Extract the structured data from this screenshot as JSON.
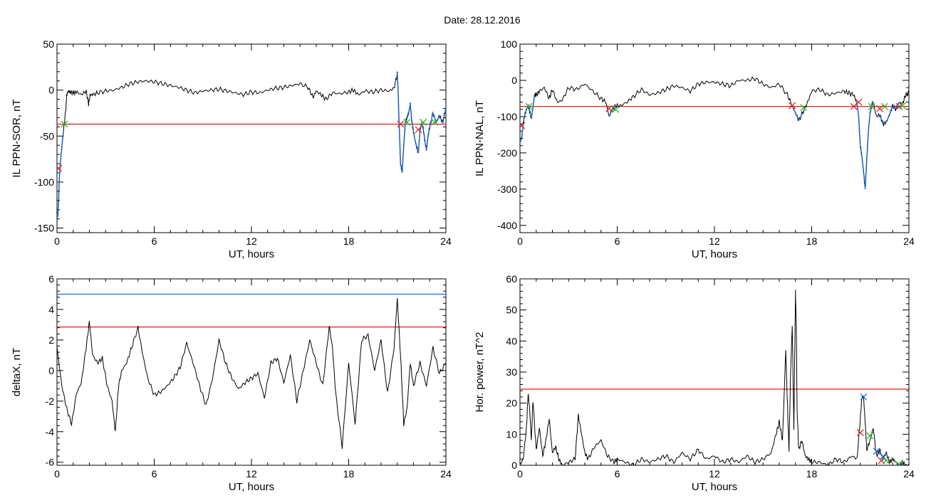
{
  "figure_title": "Date:  28.12.2016",
  "colors": {
    "series": "#000000",
    "threshold": "#e0201c",
    "threshold2": "#1a6fe0",
    "highlight": "#1a6fe0",
    "mark_start": "#e0201c",
    "mark_end": "#2bb52b"
  },
  "chart_data": [
    {
      "id": "p1",
      "type": "line",
      "xlabel": "UT, hours",
      "ylabel": "IL PPN-SOR, nT",
      "xlim": [
        0,
        24
      ],
      "ylim": [
        -155,
        50
      ],
      "xticks": [
        0,
        6,
        12,
        18,
        24
      ],
      "yticks": [
        -150,
        -100,
        -50,
        0,
        50
      ],
      "hlines": [
        {
          "y": -37,
          "color": "threshold"
        }
      ],
      "series": [
        {
          "x": [
            0.0,
            0.05,
            0.1,
            0.15,
            0.25,
            0.4,
            0.55,
            0.6,
            0.7,
            0.8,
            1.0,
            1.2,
            1.5,
            1.8,
            1.95,
            2.05,
            2.2,
            2.5,
            3.0,
            3.5,
            4.0,
            4.5,
            5.0,
            5.5,
            6.0,
            6.5,
            7.0,
            7.5,
            8.0,
            8.5,
            9.0,
            9.5,
            10.0,
            10.5,
            11.0,
            11.5,
            12.0,
            12.5,
            13.0,
            13.5,
            14.0,
            14.5,
            15.0,
            15.5,
            15.8,
            16.0,
            16.3,
            16.6,
            17.0,
            17.5,
            18.0,
            18.3,
            18.6,
            19.0,
            19.5,
            20.0,
            20.5,
            20.8,
            21.0,
            21.05,
            21.1,
            21.15,
            21.2,
            21.3,
            21.4,
            21.5,
            21.6,
            21.7,
            21.8,
            21.9,
            22.0,
            22.1,
            22.2,
            22.3,
            22.4,
            22.5,
            22.6,
            22.7,
            22.8,
            22.9,
            23.0,
            23.2,
            23.4,
            23.6,
            23.8,
            24.0
          ],
          "y": [
            -135,
            -138,
            -120,
            -95,
            -70,
            -45,
            -20,
            -5,
            -1,
            -2,
            -3,
            -2,
            -5,
            -1,
            -15,
            -5,
            -5,
            -3,
            -1,
            0,
            3,
            7,
            9,
            10,
            9,
            7,
            5,
            3,
            0,
            -3,
            -1,
            0,
            1,
            -1,
            -3,
            -5,
            -2,
            -3,
            0,
            2,
            3,
            5,
            7,
            3,
            -8,
            -1,
            -5,
            -10,
            -3,
            -4,
            -2,
            0,
            -5,
            -1,
            -2,
            0,
            -1,
            2,
            18,
            0,
            -30,
            -55,
            -80,
            -90,
            -60,
            -35,
            -30,
            -25,
            -15,
            -35,
            -45,
            -55,
            -62,
            -68,
            -45,
            -35,
            -42,
            -55,
            -65,
            -50,
            -40,
            -25,
            -35,
            -28,
            -35,
            -20
          ],
          "color": "series"
        }
      ],
      "highlight": [
        {
          "from": 0.0,
          "to": 0.5
        },
        {
          "from": 21.0,
          "to": 24.0
        }
      ],
      "markers": [
        {
          "x": 0.1,
          "y": -85,
          "color": "mark_start"
        },
        {
          "x": 0.45,
          "y": -37,
          "color": "mark_end"
        },
        {
          "x": 21.2,
          "y": -37,
          "color": "mark_start"
        },
        {
          "x": 21.6,
          "y": -35,
          "color": "mark_end"
        },
        {
          "x": 22.3,
          "y": -43,
          "color": "mark_start"
        },
        {
          "x": 22.6,
          "y": -35,
          "color": "mark_end"
        },
        {
          "x": 23.3,
          "y": -35,
          "color": "mark_end"
        }
      ]
    },
    {
      "id": "p2",
      "type": "line",
      "xlabel": "UT, hours",
      "ylabel": "IL PPN-NAL, nT",
      "xlim": [
        0,
        24
      ],
      "ylim": [
        -420,
        100
      ],
      "xticks": [
        0,
        6,
        12,
        18,
        24
      ],
      "yticks": [
        -400,
        -300,
        -200,
        -100,
        0,
        100
      ],
      "hlines": [
        {
          "y": -72,
          "color": "threshold"
        }
      ],
      "series": [
        {
          "x": [
            0.0,
            0.1,
            0.2,
            0.3,
            0.4,
            0.5,
            0.6,
            0.7,
            0.8,
            0.9,
            1.0,
            1.2,
            1.5,
            1.8,
            2.0,
            2.3,
            2.6,
            3.0,
            3.5,
            4.0,
            4.5,
            5.0,
            5.3,
            5.5,
            5.7,
            5.9,
            6.2,
            6.6,
            7.0,
            7.5,
            8.0,
            8.5,
            9.0,
            9.5,
            10.0,
            10.5,
            11.0,
            11.5,
            12.0,
            12.5,
            13.0,
            13.5,
            14.0,
            14.5,
            15.0,
            15.5,
            16.0,
            16.5,
            16.8,
            17.0,
            17.2,
            17.5,
            17.8,
            18.0,
            18.5,
            19.0,
            19.5,
            20.0,
            20.3,
            20.6,
            20.8,
            20.9,
            21.0,
            21.1,
            21.2,
            21.3,
            21.4,
            21.5,
            21.6,
            21.7,
            21.8,
            22.0,
            22.2,
            22.4,
            22.6,
            22.8,
            23.0,
            23.2,
            23.4,
            23.6,
            23.8,
            24.0
          ],
          "y": [
            -170,
            -160,
            -120,
            -95,
            -80,
            -70,
            -85,
            -105,
            -75,
            -40,
            -40,
            -30,
            -20,
            -50,
            -25,
            -60,
            -55,
            -20,
            -25,
            -10,
            -30,
            -50,
            -60,
            -100,
            -80,
            -70,
            -70,
            -60,
            -45,
            -25,
            -40,
            -35,
            -25,
            -15,
            -20,
            -30,
            -10,
            -5,
            -5,
            -10,
            -15,
            0,
            0,
            5,
            -10,
            -20,
            -10,
            -40,
            -70,
            -90,
            -110,
            -85,
            -55,
            -30,
            -25,
            -40,
            -35,
            -30,
            -35,
            -40,
            -65,
            -100,
            -180,
            -210,
            -250,
            -300,
            -220,
            -140,
            -90,
            -70,
            -60,
            -100,
            -95,
            -120,
            -115,
            -95,
            -70,
            -80,
            -60,
            -65,
            -40,
            -35
          ],
          "color": "series"
        }
      ],
      "highlight": [
        {
          "from": 0.0,
          "to": 0.9
        },
        {
          "from": 5.4,
          "to": 6.0
        },
        {
          "from": 16.7,
          "to": 17.6
        },
        {
          "from": 20.7,
          "to": 21.9
        },
        {
          "from": 22.0,
          "to": 23.5
        }
      ],
      "markers": [
        {
          "x": 0.1,
          "y": -125,
          "color": "mark_start"
        },
        {
          "x": 0.55,
          "y": -72,
          "color": "mark_end"
        },
        {
          "x": 5.5,
          "y": -78,
          "color": "mark_start"
        },
        {
          "x": 5.9,
          "y": -80,
          "color": "mark_end"
        },
        {
          "x": 16.8,
          "y": -70,
          "color": "mark_start"
        },
        {
          "x": 17.5,
          "y": -75,
          "color": "mark_end"
        },
        {
          "x": 20.6,
          "y": -72,
          "color": "mark_start"
        },
        {
          "x": 20.9,
          "y": -60,
          "color": "mark_start"
        },
        {
          "x": 21.7,
          "y": -72,
          "color": "mark_end"
        },
        {
          "x": 22.2,
          "y": -78,
          "color": "mark_start"
        },
        {
          "x": 22.5,
          "y": -72,
          "color": "mark_end"
        },
        {
          "x": 23.4,
          "y": -72,
          "color": "mark_start"
        },
        {
          "x": 23.6,
          "y": -70,
          "color": "mark_end"
        }
      ]
    },
    {
      "id": "p3",
      "type": "line",
      "xlabel": "UT, hours",
      "ylabel": "deltaX, nT",
      "xlim": [
        0,
        24
      ],
      "ylim": [
        -6.2,
        6
      ],
      "xticks": [
        0,
        6,
        12,
        18,
        24
      ],
      "yticks": [
        -6,
        -4,
        -2,
        0,
        2,
        4,
        6
      ],
      "hlines": [
        {
          "y": 5.0,
          "color": "threshold2"
        },
        {
          "y": 2.85,
          "color": "threshold"
        }
      ],
      "series": [
        {
          "x": [
            0.0,
            0.3,
            0.6,
            0.9,
            1.2,
            1.5,
            1.8,
            2.0,
            2.2,
            2.5,
            2.8,
            3.1,
            3.4,
            3.6,
            3.8,
            4.0,
            4.3,
            4.6,
            5.0,
            5.3,
            5.6,
            6.0,
            6.4,
            6.8,
            7.2,
            7.6,
            8.0,
            8.4,
            8.8,
            9.2,
            9.6,
            10.0,
            10.4,
            10.8,
            11.2,
            11.6,
            12.0,
            12.4,
            12.8,
            13.2,
            13.6,
            14.0,
            14.4,
            14.8,
            15.2,
            15.6,
            16.0,
            16.4,
            16.8,
            17.0,
            17.2,
            17.6,
            18.0,
            18.4,
            18.8,
            19.2,
            19.6,
            20.0,
            20.4,
            20.8,
            21.0,
            21.2,
            21.4,
            21.6,
            21.8,
            22.0,
            22.4,
            22.8,
            23.2,
            23.6,
            24.0
          ],
          "y": [
            1.5,
            -1.0,
            -2.5,
            -3.5,
            -1.5,
            -0.8,
            1.5,
            3.2,
            1.0,
            0.5,
            0.8,
            -1.0,
            -2.0,
            -4.0,
            -1.0,
            0.0,
            0.5,
            1.5,
            2.8,
            1.0,
            -0.5,
            -1.6,
            -1.4,
            -1.0,
            -0.5,
            0.2,
            1.8,
            0.5,
            -1.0,
            -2.3,
            -0.5,
            2.0,
            0.5,
            -0.5,
            -1.2,
            -0.8,
            -0.5,
            -0.2,
            -1.8,
            0.5,
            0.8,
            -0.8,
            1.0,
            -2.0,
            0.0,
            2.0,
            0.5,
            -1.0,
            2.9,
            1.5,
            -1.5,
            -5.0,
            0.5,
            -3.5,
            2.0,
            2.3,
            0.0,
            2.0,
            -1.5,
            1.5,
            4.7,
            1.0,
            -3.5,
            -2.5,
            0.5,
            -1.0,
            0.5,
            -1.0,
            1.5,
            -0.2,
            0.5
          ],
          "color": "series"
        }
      ],
      "highlight": [],
      "markers": []
    },
    {
      "id": "p4",
      "type": "line",
      "xlabel": "UT, hours",
      "ylabel": "Hor. power, nT^2",
      "xlim": [
        0,
        24
      ],
      "ylim": [
        0,
        60
      ],
      "xticks": [
        0,
        6,
        12,
        18,
        24
      ],
      "yticks": [
        0,
        10,
        20,
        30,
        40,
        50,
        60
      ],
      "hlines": [
        {
          "y": 24.5,
          "color": "threshold"
        }
      ],
      "series": [
        {
          "x": [
            0.0,
            0.2,
            0.4,
            0.5,
            0.6,
            0.7,
            0.8,
            1.0,
            1.2,
            1.4,
            1.6,
            1.8,
            2.0,
            2.2,
            2.4,
            2.6,
            3.0,
            3.4,
            3.6,
            3.8,
            4.0,
            4.2,
            4.6,
            5.0,
            5.4,
            5.8,
            6.0,
            6.5,
            7.0,
            7.5,
            8.0,
            8.5,
            9.0,
            9.5,
            10.0,
            10.5,
            11.0,
            11.5,
            12.0,
            12.5,
            13.0,
            13.5,
            14.0,
            14.5,
            15.0,
            15.5,
            15.8,
            16.0,
            16.2,
            16.4,
            16.5,
            16.6,
            16.7,
            16.8,
            16.9,
            17.0,
            17.05,
            17.1,
            17.2,
            17.4,
            17.6,
            17.8,
            18.0,
            18.5,
            19.0,
            19.5,
            20.0,
            20.5,
            20.8,
            21.0,
            21.1,
            21.2,
            21.3,
            21.4,
            21.6,
            21.8,
            22.0,
            22.2,
            22.4,
            22.6,
            22.8,
            23.0,
            23.2,
            23.4,
            23.6,
            23.8,
            24.0
          ],
          "y": [
            0,
            2,
            12,
            23,
            18,
            8,
            21,
            5,
            12,
            3,
            8,
            15,
            4,
            6,
            2,
            0,
            1,
            2,
            16,
            10,
            4,
            2,
            6,
            8,
            3,
            1,
            2,
            1,
            0,
            2,
            1,
            2,
            3,
            1,
            4,
            2,
            5,
            2,
            3,
            1,
            2,
            1,
            3,
            1,
            2,
            4,
            10,
            14,
            8,
            37,
            20,
            5,
            30,
            45,
            12,
            56,
            45,
            18,
            5,
            8,
            3,
            2,
            1,
            1,
            0,
            2,
            1,
            3,
            2,
            15,
            22,
            22,
            14,
            5,
            8,
            12,
            3,
            5,
            2,
            4,
            1,
            2,
            1,
            0,
            1,
            0,
            0
          ],
          "color": "series"
        }
      ],
      "highlight": [],
      "markers": [
        {
          "x": 21.0,
          "y": 10.5,
          "color": "mark_start"
        },
        {
          "x": 21.2,
          "y": 22,
          "color": "highlight"
        },
        {
          "x": 21.6,
          "y": 9.5,
          "color": "mark_end"
        },
        {
          "x": 22.0,
          "y": 4.5,
          "color": "highlight"
        },
        {
          "x": 22.3,
          "y": 1.5,
          "color": "mark_start"
        },
        {
          "x": 22.4,
          "y": 2.8,
          "color": "highlight"
        },
        {
          "x": 22.6,
          "y": 1.5,
          "color": "mark_end"
        },
        {
          "x": 23.4,
          "y": 0.2,
          "color": "mark_end"
        }
      ]
    }
  ]
}
